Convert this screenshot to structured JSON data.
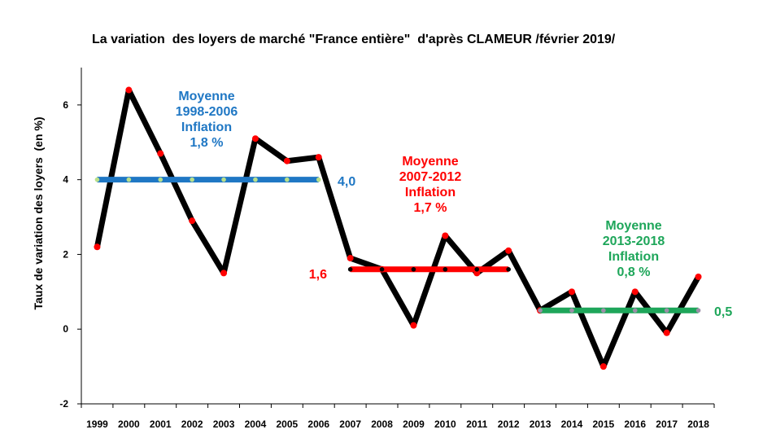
{
  "chart_data": {
    "type": "line",
    "title": "La variation  des loyers de marché \"France entière\"  d'après CLAMEUR /février 2019/",
    "ylabel": "Taux de variation des loyers  (en %)",
    "xlabel": "",
    "ylim": [
      -2,
      7
    ],
    "yticks": [
      -2,
      0,
      2,
      4,
      6
    ],
    "grid": false,
    "legend": "none",
    "categories": [
      "1999",
      "2000",
      "2001",
      "2002",
      "2003",
      "2004",
      "2005",
      "2006",
      "2007",
      "2008",
      "2009",
      "2010",
      "2011",
      "2012",
      "2013",
      "2014",
      "2015",
      "2016",
      "2017",
      "2018"
    ],
    "series": [
      {
        "values": [
          2.2,
          6.4,
          4.7,
          2.9,
          1.5,
          5.1,
          4.5,
          4.6,
          1.9,
          1.6,
          0.1,
          2.5,
          1.5,
          2.1,
          0.5,
          1.0,
          -1.0,
          1.0,
          -0.1,
          1.4
        ],
        "color": "#000000",
        "marker_color": "#ff0000"
      }
    ],
    "averages": [
      {
        "from": "1999",
        "to": "2006",
        "value": 4.0,
        "label": "4,0",
        "color": "#1f77c4",
        "marker_color": "#b9e08a",
        "annotation": [
          "Moyenne",
          "1998-2006",
          "Inflation",
          "1,8 %"
        ]
      },
      {
        "from": "2007",
        "to": "2012",
        "value": 1.6,
        "label": "1,6",
        "color": "#ff0000",
        "marker_color": "#000000",
        "annotation": [
          "Moyenne",
          "2007-2012",
          "Inflation",
          "1,7 %"
        ]
      },
      {
        "from": "2013",
        "to": "2018",
        "value": 0.5,
        "label": "0,5",
        "color": "#1ea65a",
        "marker_color": "#9c8fa8",
        "annotation": [
          "Moyenne",
          "2013-2018",
          "Inflation",
          "0,8 %"
        ]
      }
    ]
  }
}
